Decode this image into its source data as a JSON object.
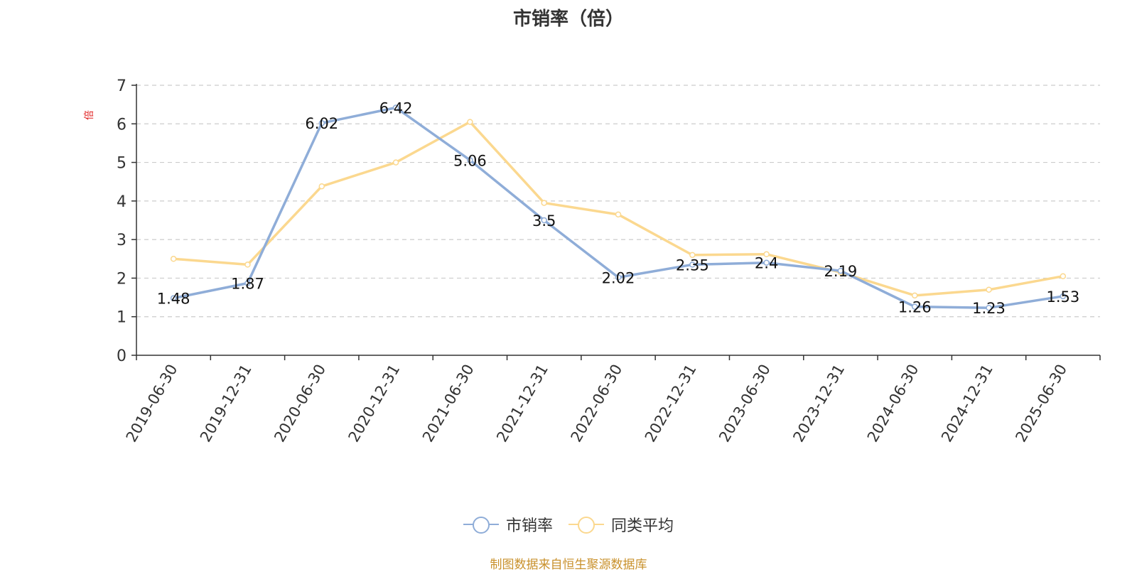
{
  "chart_data": {
    "type": "line",
    "title": "市销率（倍）",
    "ylabel": "倍",
    "xlabel": "",
    "categories": [
      "2019-06-30",
      "2019-12-31",
      "2020-06-30",
      "2020-12-31",
      "2021-06-30",
      "2021-12-31",
      "2022-06-30",
      "2022-12-31",
      "2023-06-30",
      "2023-12-31",
      "2024-06-30",
      "2024-12-31",
      "2025-06-30"
    ],
    "series": [
      {
        "name": "市销率",
        "color": "#8fadd8",
        "values": [
          1.48,
          1.87,
          6.02,
          6.42,
          5.06,
          3.5,
          2.02,
          2.35,
          2.4,
          2.19,
          1.26,
          1.23,
          1.53
        ],
        "labels": [
          "1.48",
          "1.87",
          "6.02",
          "6.42",
          "5.06",
          "3.5",
          "2.02",
          "2.35",
          "2.4",
          "2.19",
          "1.26",
          "1.23",
          "1.53"
        ]
      },
      {
        "name": "同类平均",
        "color": "#fbd88f",
        "values": [
          2.5,
          2.35,
          4.38,
          5.0,
          6.05,
          3.95,
          3.65,
          2.6,
          2.62,
          2.15,
          1.55,
          1.7,
          2.05
        ]
      }
    ],
    "ylim": [
      0,
      7
    ],
    "yticks": [
      0,
      1,
      2,
      3,
      4,
      5,
      6,
      7
    ],
    "grid": true,
    "legend_position": "bottom"
  },
  "footer": {
    "source": "制图数据来自恒生聚源数据库"
  }
}
